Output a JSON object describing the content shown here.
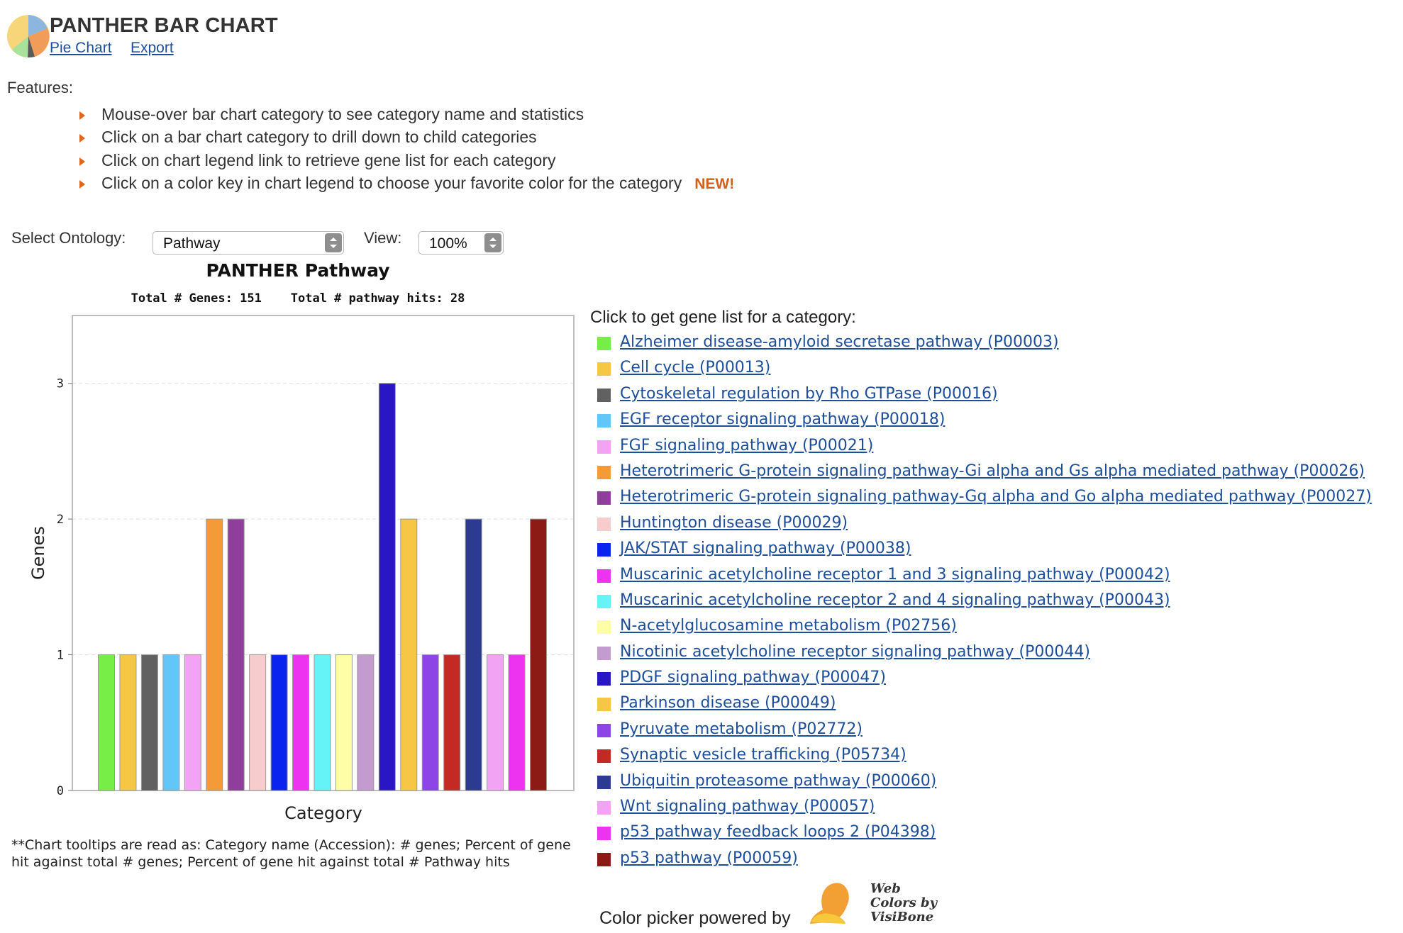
{
  "header": {
    "title": "PANTHER BAR CHART",
    "links": {
      "pie_chart": "Pie Chart",
      "export": "Export"
    }
  },
  "features": {
    "heading": "Features:",
    "items": [
      "Mouse-over bar chart category to see category name and statistics",
      "Click on a bar chart category to drill down to child categories",
      "Click on chart legend link to retrieve gene list for each category",
      "Click on a color key in chart legend to choose your favorite color for the category"
    ],
    "new_badge": "NEW!"
  },
  "controls": {
    "ontology_label": "Select Ontology:",
    "ontology_value": "Pathway",
    "view_label": "View:",
    "view_value": "100%"
  },
  "chart_data": {
    "type": "bar",
    "title": "PANTHER Pathway",
    "subtitle": "Total # Genes: 151    Total # pathway hits: 28",
    "xlabel": "Category",
    "ylabel": "Genes",
    "ylim": [
      0,
      3.5
    ],
    "yticks": [
      0,
      1,
      2,
      3
    ],
    "grid": true,
    "categories": [
      "Alzheimer disease-amyloid secretase pathway (P00003)",
      "Cell cycle (P00013)",
      "Cytoskeletal regulation by Rho GTPase (P00016)",
      "EGF receptor signaling pathway (P00018)",
      "FGF signaling pathway (P00021)",
      "Heterotrimeric G-protein signaling pathway-Gi alpha and Gs alpha mediated pathway (P00026)",
      "Heterotrimeric G-protein signaling pathway-Gq alpha and Go alpha mediated pathway (P00027)",
      "Huntington disease (P00029)",
      "JAK/STAT signaling pathway (P00038)",
      "Muscarinic acetylcholine receptor 1 and 3 signaling pathway (P00042)",
      "Muscarinic acetylcholine receptor 2 and 4 signaling pathway (P00043)",
      "N-acetylglucosamine metabolism (P02756)",
      "Nicotinic acetylcholine receptor signaling pathway (P00044)",
      "PDGF signaling pathway (P00047)",
      "Parkinson disease (P00049)",
      "Pyruvate metabolism (P02772)",
      "Synaptic vesicle trafficking (P05734)",
      "Ubiquitin proteasome pathway (P00060)",
      "Wnt signaling pathway (P00057)",
      "p53 pathway feedback loops 2 (P04398)",
      "p53 pathway (P00059)"
    ],
    "values": [
      1,
      1,
      1,
      1,
      1,
      2,
      2,
      1,
      1,
      1,
      1,
      1,
      1,
      3,
      2,
      1,
      1,
      2,
      1,
      1,
      2
    ],
    "colors": [
      "#77ee48",
      "#f6c744",
      "#616161",
      "#63c6f8",
      "#f2a3f3",
      "#f39b38",
      "#8f3f9b",
      "#f6cccc",
      "#0a23ee",
      "#ee33f0",
      "#66f3f8",
      "#fefea6",
      "#c39bce",
      "#2a16c4",
      "#f6c744",
      "#8d45e8",
      "#c22a23",
      "#2c3a92",
      "#f2a3f3",
      "#ee33f0",
      "#8b1b14"
    ]
  },
  "legend": {
    "heading": "Click to get gene list for a category:"
  },
  "footnote": "**Chart tooltips are read as: Category name (Accession): # genes; Percent of gene hit against total # genes; Percent of gene hit against total # Pathway hits",
  "powered_by": {
    "text": "Color picker powered by",
    "logo_text": "Web Colors by VisiBone"
  },
  "colors": {
    "link": "#1d4e9a",
    "accent_new": "#d2601d",
    "bullet": "#e0661c"
  }
}
